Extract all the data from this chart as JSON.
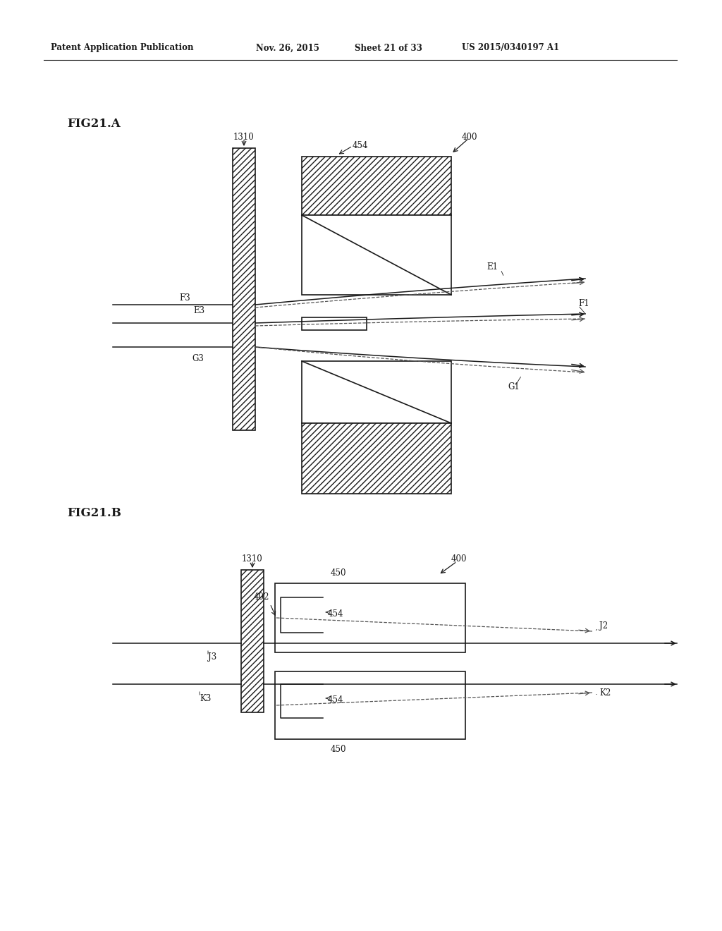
{
  "bg_color": "#ffffff",
  "header_text": "Patent Application Publication",
  "header_date": "Nov. 26, 2015",
  "header_sheet": "Sheet 21 of 33",
  "header_patent": "US 2015/0340197 A1",
  "fig_a_label": "FIG21.A",
  "fig_b_label": "FIG21.B",
  "line_color": "#1a1a1a",
  "hatch_color": "#1a1a1a",
  "dashed_color": "#555555"
}
